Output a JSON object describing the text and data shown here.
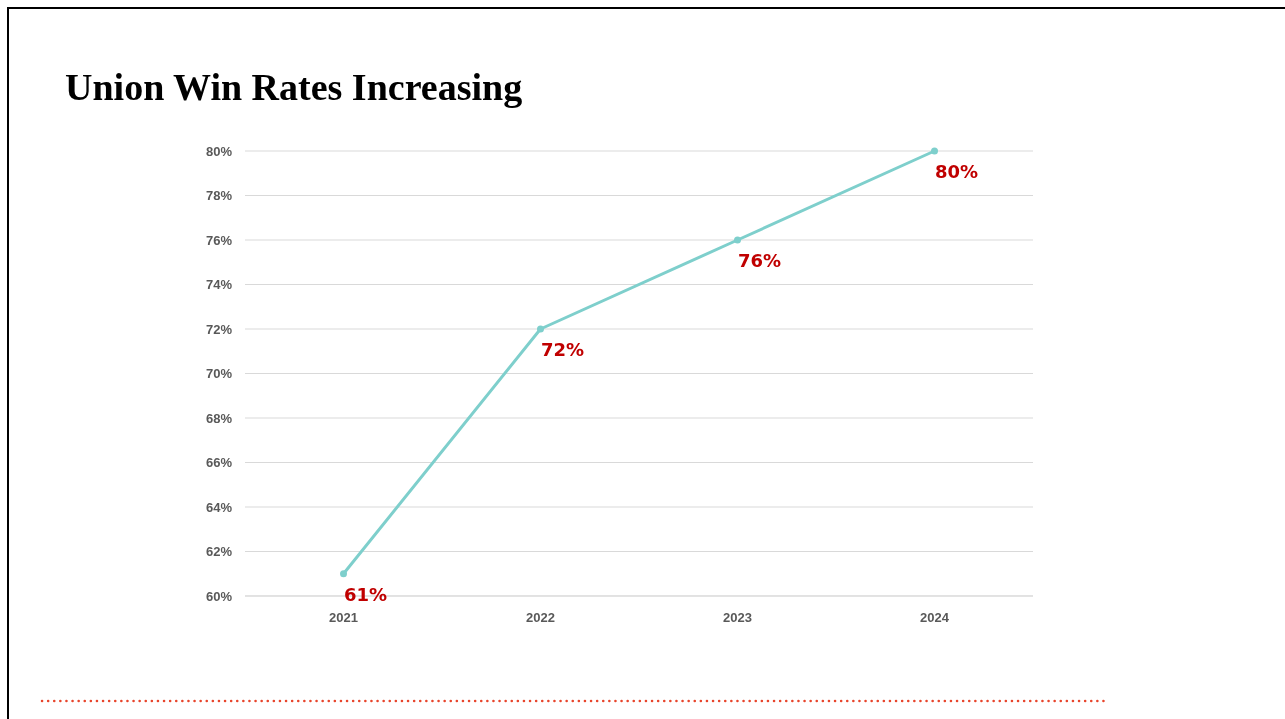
{
  "chart_data": {
    "type": "line",
    "title": "Union Win Rates Increasing",
    "categories": [
      "2021",
      "2022",
      "2023",
      "2024"
    ],
    "series": [
      {
        "color": "#7ecfcc",
        "values": [
          61,
          72,
          76,
          80
        ],
        "value_labels": [
          "61%",
          "72%",
          "76%",
          "80%"
        ]
      }
    ],
    "ylim": [
      60,
      80
    ],
    "yticks": [
      {
        "value": 60,
        "label": "60%"
      },
      {
        "value": 62,
        "label": "62%"
      },
      {
        "value": 64,
        "label": "64%"
      },
      {
        "value": 66,
        "label": "66%"
      },
      {
        "value": 68,
        "label": "68%"
      },
      {
        "value": 70,
        "label": "70%"
      },
      {
        "value": 72,
        "label": "72%"
      },
      {
        "value": 74,
        "label": "74%"
      },
      {
        "value": 76,
        "label": "76%"
      },
      {
        "value": 78,
        "label": "78%"
      },
      {
        "value": 80,
        "label": "80%"
      }
    ],
    "grid": "y",
    "marker": "circle",
    "line_style": "solid"
  }
}
